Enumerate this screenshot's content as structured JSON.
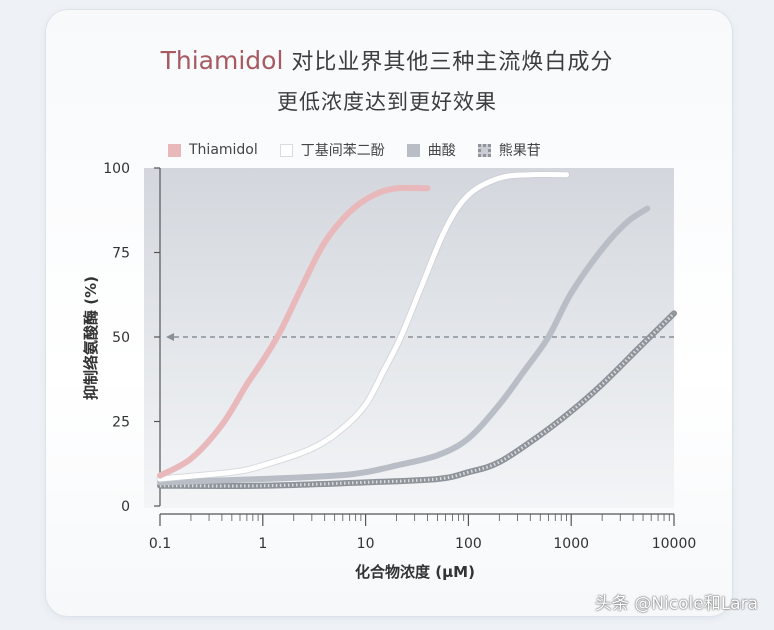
{
  "title": {
    "brand": "Thiamidol",
    "line1_rest": "对比业界其他三种主流焕白成分",
    "line2": "更低浓度达到更好效果"
  },
  "watermark": "头条 @Nicole和Lara",
  "colors": {
    "thiamidol": "#e8b8bb",
    "butylresorcinol": "#ffffff",
    "kojic": "#b9bec6",
    "arbutin": "#a9adb4",
    "plot_bg_top": "#d4d8de",
    "plot_bg_bottom": "#f2f4f6",
    "axis": "#555555"
  },
  "chart_data": {
    "type": "line",
    "xscale": "log",
    "xlim": [
      0.1,
      10000
    ],
    "ylim": [
      0,
      100
    ],
    "xticks": [
      "0.1",
      "1",
      "10",
      "100",
      "1000",
      "10000"
    ],
    "yticks": [
      "0",
      "25",
      "50",
      "75",
      "100"
    ],
    "xlabel": "化合物浓度 (μM)",
    "ylabel": "抑制络氨酸酶 (%)",
    "legend_position": "top",
    "grid": false,
    "reference_line": {
      "y": 50,
      "style": "dashed-arrow"
    },
    "series": [
      {
        "name": "Thiamidol",
        "color_key": "thiamidol",
        "x": [
          0.1,
          0.2,
          0.4,
          0.7,
          1,
          1.5,
          2.5,
          4,
          7,
          12,
          20,
          40
        ],
        "y": [
          9,
          14,
          24,
          36,
          43,
          52,
          66,
          78,
          87,
          92,
          94,
          94
        ]
      },
      {
        "name": "丁基间苯二酚",
        "color_key": "butylresorcinol",
        "x": [
          0.1,
          0.5,
          1,
          3,
          6,
          10,
          15,
          22,
          35,
          60,
          100,
          200,
          400,
          900
        ],
        "y": [
          8,
          10,
          12,
          17,
          23,
          30,
          40,
          50,
          65,
          82,
          92,
          97,
          98,
          98
        ]
      },
      {
        "name": "曲酸",
        "color_key": "kojic",
        "x": [
          0.1,
          1,
          5,
          10,
          20,
          50,
          100,
          200,
          350,
          600,
          1000,
          2000,
          3500,
          5500
        ],
        "y": [
          7,
          8,
          9,
          10,
          12,
          15,
          20,
          30,
          40,
          50,
          63,
          76,
          84,
          88
        ]
      },
      {
        "name": "熊果苷",
        "color_key": "arbutin",
        "x": [
          0.1,
          1,
          10,
          50,
          100,
          200,
          500,
          1000,
          2000,
          5000,
          10000
        ],
        "y": [
          6,
          6,
          7,
          8,
          10,
          13,
          21,
          28,
          36,
          48,
          57
        ]
      }
    ]
  }
}
